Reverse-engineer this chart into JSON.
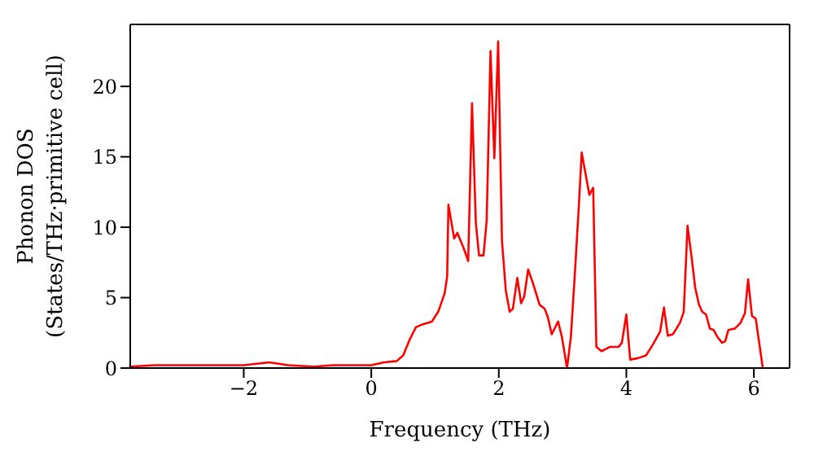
{
  "chart_data": {
    "type": "line",
    "xlabel": "Frequency (THz)",
    "ylabel": "Phonon DOS\n(States/THz·primitive cell)",
    "xlim": [
      -3.78,
      6.56
    ],
    "ylim": [
      0,
      24.4
    ],
    "xticks": [
      {
        "value": -2,
        "label": "−2"
      },
      0,
      2,
      4,
      6
    ],
    "yticks": [
      0,
      5,
      10,
      15,
      20
    ],
    "grid": false,
    "legend": false,
    "marker": "none",
    "line_style": "solid",
    "series": [
      {
        "color": "#ff0000",
        "x": [
          -3.78,
          -3.4,
          -2.0,
          -1.6,
          -1.3,
          -0.9,
          -0.6,
          0,
          0.2,
          0.4,
          0.5,
          0.6,
          0.7,
          0.8,
          0.95,
          1.05,
          1.15,
          1.19,
          1.21,
          1.3,
          1.35,
          1.45,
          1.52,
          1.58,
          1.64,
          1.69,
          1.76,
          1.81,
          1.87,
          1.93,
          1.99,
          2.05,
          2.11,
          2.17,
          2.22,
          2.29,
          2.35,
          2.4,
          2.46,
          2.53,
          2.64,
          2.72,
          2.77,
          2.83,
          2.93,
          2.99,
          3.07,
          3.13,
          3.19,
          3.25,
          3.3,
          3.36,
          3.42,
          3.48,
          3.53,
          3.61,
          3.74,
          3.88,
          3.93,
          4.0,
          4.06,
          4.18,
          4.31,
          4.42,
          4.53,
          4.59,
          4.65,
          4.73,
          4.84,
          4.9,
          4.96,
          5.02,
          5.08,
          5.14,
          5.19,
          5.25,
          5.31,
          5.37,
          5.43,
          5.5,
          5.55,
          5.6,
          5.7,
          5.79,
          5.86,
          5.91,
          5.97,
          6.03,
          6.14
        ],
        "values": [
          0.1,
          0.2,
          0.2,
          0.4,
          0.2,
          0.1,
          0.2,
          0.2,
          0.4,
          0.5,
          0.9,
          2.0,
          2.9,
          3.1,
          3.3,
          4.0,
          5.3,
          6.5,
          11.6,
          9.2,
          9.6,
          8.5,
          7.6,
          18.8,
          10.3,
          8.0,
          8.0,
          10.5,
          22.5,
          14.9,
          23.2,
          9.0,
          5.5,
          4.0,
          4.2,
          6.4,
          4.6,
          5.1,
          7.0,
          6.1,
          4.5,
          4.2,
          3.6,
          2.4,
          3.3,
          2.2,
          0,
          2.2,
          6.5,
          11.1,
          15.3,
          13.8,
          12.3,
          12.8,
          1.5,
          1.2,
          1.5,
          1.5,
          1.8,
          3.8,
          0.6,
          0.7,
          0.9,
          1.7,
          2.6,
          4.3,
          2.3,
          2.4,
          3.2,
          4.0,
          10.1,
          8.0,
          5.7,
          4.5,
          4.0,
          3.8,
          2.8,
          2.7,
          2.2,
          1.8,
          1.9,
          2.7,
          2.8,
          3.2,
          3.9,
          6.3,
          3.7,
          3.5,
          0
        ]
      }
    ]
  }
}
